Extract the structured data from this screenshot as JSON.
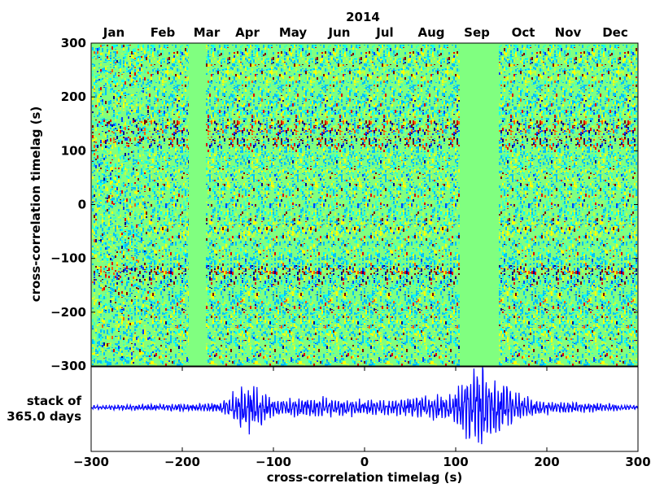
{
  "chart_data": [
    {
      "type": "heatmap",
      "title": "2014",
      "top_axis_ticks": [
        "Jan",
        "Feb",
        "Mar",
        "Apr",
        "May",
        "Jun",
        "Jul",
        "Aug",
        "Sep",
        "Oct",
        "Nov",
        "Dec"
      ],
      "ylabel": "cross-correlation timelag (s)",
      "ylim": [
        -300,
        300
      ],
      "yticks": [
        300,
        200,
        100,
        0,
        -100,
        -200,
        -300
      ],
      "yticklabels": [
        "300",
        "200",
        "100",
        "0",
        "−100",
        "−200",
        "−300"
      ],
      "colormap": "jet",
      "background_color": "#80ff80",
      "data_gaps": [
        {
          "start": "Mar 1",
          "end": "Mar 3"
        },
        {
          "start": "Aug 20",
          "end": "Sep 25"
        }
      ],
      "strong_bands_timelag_s": [
        150,
        140,
        120,
        -120,
        -130
      ]
    },
    {
      "type": "line",
      "ylabel_lines": [
        "stack of",
        "365.0 days"
      ],
      "xlabel": "cross-correlation timelag (s)",
      "xlim": [
        -300,
        300
      ],
      "xticks": [
        -300,
        -200,
        -100,
        0,
        100,
        200,
        300
      ],
      "xticklabels": [
        "−300",
        "−200",
        "−100",
        "0",
        "100",
        "200",
        "300"
      ],
      "series_color": "#0000ff",
      "envelope": {
        "x": [
          -300,
          -160,
          -130,
          -115,
          -100,
          -60,
          -20,
          20,
          60,
          95,
          115,
          125,
          140,
          165,
          200,
          240,
          300
        ],
        "amplitude": [
          0.05,
          0.1,
          0.55,
          0.45,
          0.2,
          0.25,
          0.2,
          0.18,
          0.25,
          0.3,
          0.75,
          1.0,
          0.8,
          0.35,
          0.15,
          0.12,
          0.05
        ]
      }
    }
  ]
}
